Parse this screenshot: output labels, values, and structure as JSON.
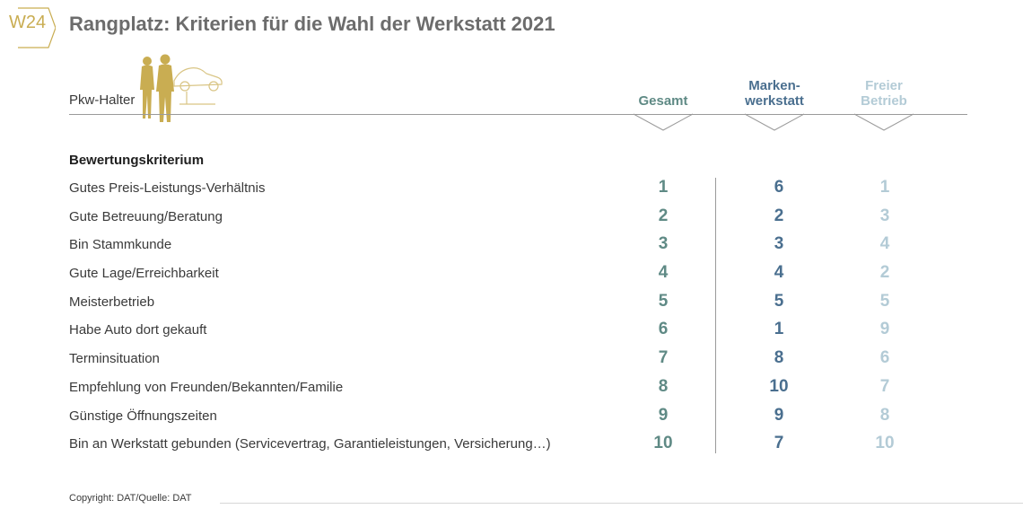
{
  "badge": "W24",
  "title": "Rangplatz: Kriterien für die Wahl der Werkstatt 2021",
  "holder_label": "Pkw-Halter",
  "section_label": "Bewertungskriterium",
  "columns": {
    "gesamt": "Gesamt",
    "marken_line1": "Marken-",
    "marken_line2": "werkstatt",
    "frei_line1": "Freier",
    "frei_line2": "Betrieb"
  },
  "colors": {
    "gold": "#c9ad52",
    "gesamt": "#5f8a85",
    "markenwerkstatt": "#4a6f8f",
    "freier_betrieb": "#b3cbd6"
  },
  "footer": "Copyright: DAT/Quelle: DAT",
  "chart_data": {
    "type": "table",
    "title": "Rangplatz: Kriterien für die Wahl der Werkstatt 2021",
    "row_header": "Bewertungskriterium",
    "columns": [
      "Gesamt",
      "Markenwerkstatt",
      "Freier Betrieb"
    ],
    "rows": [
      {
        "label": "Gutes Preis-Leistungs-Verhältnis",
        "gesamt": 1,
        "marken": 6,
        "frei": 1
      },
      {
        "label": "Gute Betreuung/Beratung",
        "gesamt": 2,
        "marken": 2,
        "frei": 3
      },
      {
        "label": "Bin Stammkunde",
        "gesamt": 3,
        "marken": 3,
        "frei": 4
      },
      {
        "label": "Gute Lage/Erreichbarkeit",
        "gesamt": 4,
        "marken": 4,
        "frei": 2
      },
      {
        "label": "Meisterbetrieb",
        "gesamt": 5,
        "marken": 5,
        "frei": 5
      },
      {
        "label": "Habe Auto dort gekauft",
        "gesamt": 6,
        "marken": 1,
        "frei": 9
      },
      {
        "label": "Terminsituation",
        "gesamt": 7,
        "marken": 8,
        "frei": 6
      },
      {
        "label": "Empfehlung von Freunden/Bekannten/Familie",
        "gesamt": 8,
        "marken": 10,
        "frei": 7
      },
      {
        "label": "Günstige Öffnungszeiten",
        "gesamt": 9,
        "marken": 9,
        "frei": 8
      },
      {
        "label": "Bin an Werkstatt gebunden (Servicevertrag, Garantieleistungen, Versicherung…)",
        "gesamt": 10,
        "marken": 7,
        "frei": 10
      }
    ]
  }
}
